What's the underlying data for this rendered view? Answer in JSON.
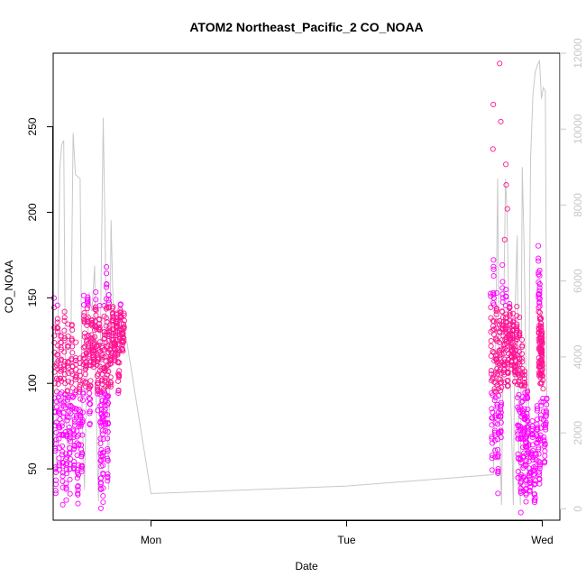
{
  "chart_data": {
    "type": "scatter",
    "title": "ATOM2 Northeast_Pacific_2 CO_NOAA",
    "xlabel": "Date",
    "ylabel": "CO_NOAA",
    "x_ticks": [
      "Mon",
      "Tue",
      "Wed"
    ],
    "y_ticks": [
      50,
      100,
      150,
      200,
      250
    ],
    "y2_ticks": [
      0,
      2000,
      4000,
      6000,
      8000,
      10000,
      12000
    ],
    "xlim": [
      -0.25,
      1.045
    ],
    "ylim": [
      20,
      293
    ],
    "y2lim": [
      -300,
      12000
    ],
    "grid": false,
    "colors": {
      "points": "#ff00ff",
      "points_dense": "#ff1493",
      "altitude_line": "#c8c8c8",
      "axis": "#000000",
      "right_axis": "#c8c8c8"
    },
    "series": [
      {
        "kind": "line",
        "axis": "right",
        "values": [
          {
            "x": -0.243,
            "y": 900
          },
          {
            "x": -0.238,
            "y": 4800
          },
          {
            "x": -0.233,
            "y": 9000
          },
          {
            "x": -0.228,
            "y": 9600
          },
          {
            "x": -0.223,
            "y": 9700
          },
          {
            "x": -0.218,
            "y": 2500
          },
          {
            "x": -0.211,
            "y": 900
          },
          {
            "x": -0.205,
            "y": 4000
          },
          {
            "x": -0.199,
            "y": 9900
          },
          {
            "x": -0.193,
            "y": 8800
          },
          {
            "x": -0.187,
            "y": 8750
          },
          {
            "x": -0.181,
            "y": 8700
          },
          {
            "x": -0.176,
            "y": 2500
          },
          {
            "x": -0.17,
            "y": 500
          },
          {
            "x": -0.165,
            "y": 3200
          },
          {
            "x": -0.158,
            "y": 5700
          },
          {
            "x": -0.151,
            "y": 5200
          },
          {
            "x": -0.144,
            "y": 6400
          },
          {
            "x": -0.138,
            "y": 1500
          },
          {
            "x": -0.134,
            "y": 200
          },
          {
            "x": -0.128,
            "y": 5500
          },
          {
            "x": -0.122,
            "y": 10300
          },
          {
            "x": -0.117,
            "y": 7000
          },
          {
            "x": -0.113,
            "y": 3000
          },
          {
            "x": -0.108,
            "y": 500
          },
          {
            "x": -0.102,
            "y": 7600
          },
          {
            "x": -0.097,
            "y": 5400
          },
          {
            "x": -0.09,
            "y": 4800
          },
          {
            "x": -0.083,
            "y": 4900
          },
          {
            "x": -0.075,
            "y": 4600
          },
          {
            "x": -0.068,
            "y": 4800
          },
          {
            "x": 0.0,
            "y": 400
          },
          {
            "x": 0.5,
            "y": 600
          },
          {
            "x": 0.875,
            "y": 900
          },
          {
            "x": 0.88,
            "y": 3500
          },
          {
            "x": 0.886,
            "y": 8700
          },
          {
            "x": 0.891,
            "y": 2000
          },
          {
            "x": 0.896,
            "y": 100
          },
          {
            "x": 0.901,
            "y": 4800
          },
          {
            "x": 0.906,
            "y": 8700
          },
          {
            "x": 0.91,
            "y": 7800
          },
          {
            "x": 0.916,
            "y": 4600
          },
          {
            "x": 0.921,
            "y": 2300
          },
          {
            "x": 0.926,
            "y": 100
          },
          {
            "x": 0.931,
            "y": 5400
          },
          {
            "x": 0.936,
            "y": 7200
          },
          {
            "x": 0.94,
            "y": 1500
          },
          {
            "x": 0.944,
            "y": 100
          },
          {
            "x": 0.949,
            "y": 9000
          },
          {
            "x": 0.954,
            "y": 6700
          },
          {
            "x": 0.959,
            "y": 3000
          },
          {
            "x": 0.964,
            "y": 500
          },
          {
            "x": 0.97,
            "y": 9200
          },
          {
            "x": 0.976,
            "y": 10900
          },
          {
            "x": 0.982,
            "y": 11500
          },
          {
            "x": 0.988,
            "y": 11700
          },
          {
            "x": 0.993,
            "y": 11800
          },
          {
            "x": 0.998,
            "y": 10800
          },
          {
            "x": 1.003,
            "y": 11100
          },
          {
            "x": 1.008,
            "y": 11000
          },
          {
            "x": 1.012,
            "y": 2500
          }
        ]
      },
      {
        "kind": "points",
        "axis": "left",
        "clusters": [
          {
            "x0": -0.248,
            "x1": -0.212,
            "segments": [
              [
                150,
                35
              ],
              [
                35,
                145
              ],
              [
                145,
                50
              ],
              [
                50,
                130
              ],
              [
                130,
                35
              ],
              [
                35,
                140
              ],
              [
                140,
                35
              ],
              [
                35,
                135
              ]
            ]
          },
          {
            "x0": -0.212,
            "x1": -0.172,
            "segments": [
              [
                125,
                40
              ],
              [
                40,
                135
              ],
              [
                135,
                50
              ],
              [
                50,
                120
              ],
              [
                120,
                30
              ],
              [
                30,
                110
              ],
              [
                110,
                45
              ],
              [
                45,
                125
              ]
            ]
          },
          {
            "x0": -0.172,
            "x1": -0.131,
            "segments": [
              [
                150,
                100
              ],
              [
                100,
                155
              ],
              [
                155,
                75
              ],
              [
                75,
                140
              ],
              [
                140,
                110
              ],
              [
                110,
                150
              ],
              [
                150,
                90
              ],
              [
                90,
                145
              ]
            ]
          },
          {
            "x0": -0.131,
            "x1": -0.108,
            "segments": [
              [
                135,
                30
              ],
              [
                30,
                125
              ],
              [
                125,
                35
              ],
              [
                35,
                140
              ],
              [
                140,
                70
              ],
              [
                70,
                170
              ],
              [
                170,
                40
              ],
              [
                40,
                130
              ]
            ]
          },
          {
            "x0": -0.108,
            "x1": -0.068,
            "segments": [
              [
                150,
                100
              ],
              [
                100,
                145
              ],
              [
                145,
                115
              ],
              [
                115,
                140
              ],
              [
                140,
                95
              ],
              [
                95,
                145
              ],
              [
                145,
                120
              ],
              [
                120,
                140
              ]
            ]
          },
          {
            "x0": 0.868,
            "x1": 0.898,
            "segments": [
              [
                155,
                55
              ],
              [
                55,
                170
              ],
              [
                170,
                60
              ],
              [
                60,
                150
              ],
              [
                150,
                40
              ],
              [
                40,
                135
              ],
              [
                135,
                70
              ],
              [
                70,
                145
              ]
            ]
          },
          {
            "x0": 0.898,
            "x1": 0.935,
            "segments": [
              [
                165,
                100
              ],
              [
                100,
                150
              ],
              [
                150,
                95
              ],
              [
                95,
                145
              ],
              [
                145,
                110
              ],
              [
                110,
                140
              ],
              [
                140,
                100
              ],
              [
                100,
                135
              ]
            ]
          },
          {
            "x0": 0.935,
            "x1": 0.962,
            "segments": [
              [
                150,
                45
              ],
              [
                45,
                135
              ],
              [
                135,
                30
              ],
              [
                30,
                125
              ],
              [
                125,
                40
              ],
              [
                40,
                110
              ],
              [
                110,
                35
              ],
              [
                35,
                100
              ]
            ]
          },
          {
            "x0": 0.962,
            "x1": 1.012,
            "segments": [
              [
                90,
                35
              ],
              [
                35,
                75
              ],
              [
                75,
                30
              ],
              [
                30,
                85
              ],
              [
                85,
                40
              ],
              [
                40,
                120
              ],
              [
                120,
                55
              ],
              [
                55,
                95
              ]
            ]
          },
          {
            "x0": 0.99,
            "x1": 1.0,
            "segments": [
              [
                180,
                105
              ],
              [
                105,
                165
              ],
              [
                165,
                100
              ],
              [
                100,
                140
              ],
              [
                140,
                110
              ],
              [
                110,
                130
              ]
            ]
          }
        ],
        "outliers": [
          {
            "x": 0.875,
            "y": 263
          },
          {
            "x": 0.874,
            "y": 237
          },
          {
            "x": 0.894,
            "y": 253
          },
          {
            "x": 0.891,
            "y": 287
          },
          {
            "x": 0.907,
            "y": 228
          },
          {
            "x": 0.908,
            "y": 216
          },
          {
            "x": 0.911,
            "y": 202
          },
          {
            "x": 0.904,
            "y": 184
          }
        ]
      }
    ]
  }
}
